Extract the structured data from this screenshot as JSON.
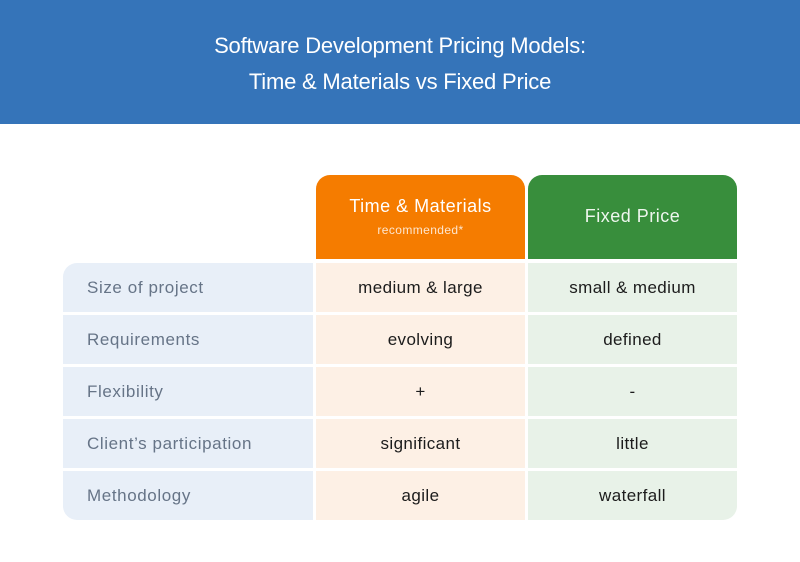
{
  "title": {
    "line1": "Software Development Pricing Models:",
    "line2": "Time & Materials vs Fixed Price"
  },
  "columns": [
    {
      "name": "Time & Materials",
      "subtitle": "recommended*",
      "color": "#f57c00"
    },
    {
      "name": "Fixed Price",
      "color": "#388e3c"
    }
  ],
  "rows": [
    {
      "label": "Size of project",
      "tm": "medium & large",
      "fp": "small & medium"
    },
    {
      "label": "Requirements",
      "tm": "evolving",
      "fp": "defined"
    },
    {
      "label": "Flexibility",
      "tm": "+",
      "fp": "-"
    },
    {
      "label": "Client’s participation",
      "tm": "significant",
      "fp": "little"
    },
    {
      "label": "Methodology",
      "tm": "agile",
      "fp": "waterfall"
    }
  ],
  "colors": {
    "banner": "#3574b9",
    "label_bg": "#e8eff8",
    "tm_bg": "#fdf0e5",
    "fp_bg": "#e8f2e8"
  }
}
